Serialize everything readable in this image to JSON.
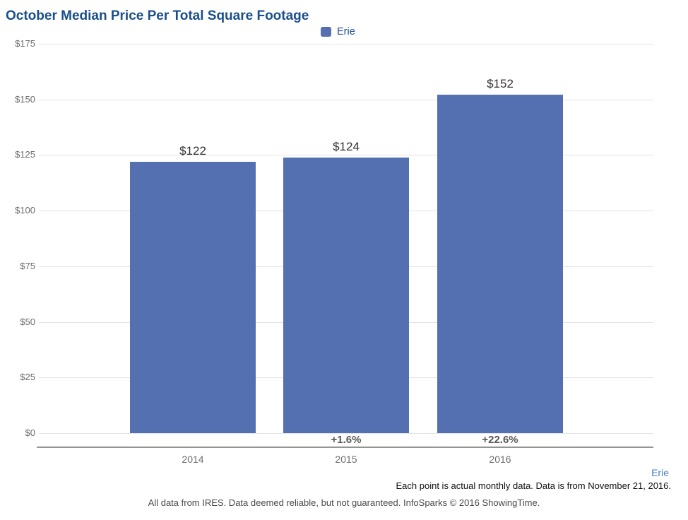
{
  "title": "October Median Price Per Total Square Footage",
  "colors": {
    "title": "#1a4e8c",
    "bar": "#5470b0",
    "legend_text": "#1d4f8f",
    "grid_line": "#e4e4e4",
    "axis_line": "#949494",
    "y_label": "#6b6b6b",
    "bar_value_label": "#333333",
    "pct_label": "#595959",
    "x_label": "#6e6e6e",
    "link": "#4d7fc0"
  },
  "legend": {
    "label": "Erie"
  },
  "chart_data": {
    "type": "bar",
    "title": "October Median Price Per Total Square Footage",
    "categories": [
      "2014",
      "2015",
      "2016"
    ],
    "series": [
      {
        "name": "Erie",
        "values": [
          122,
          124,
          152
        ]
      }
    ],
    "bar_labels": [
      "$122",
      "$124",
      "$152"
    ],
    "pct_change_labels": [
      "",
      "+1.6%",
      "+22.6%"
    ],
    "xlabel": "",
    "ylabel": "",
    "ylim": [
      0,
      175
    ],
    "ytick_values": [
      175,
      150,
      125,
      100,
      75,
      50,
      25,
      0
    ],
    "ytick_labels": [
      "$175",
      "$150",
      "$125",
      "$100",
      "$75",
      "$50",
      "$25",
      "$0"
    ],
    "grid": true,
    "legend_position": "top-center"
  },
  "footer": {
    "region_link": "Erie",
    "note": "Each point is actual monthly data. Data is from November 21, 2016.",
    "attribution": "All data from IRES. Data deemed reliable, but not guaranteed. InfoSparks © 2016 ShowingTime."
  }
}
